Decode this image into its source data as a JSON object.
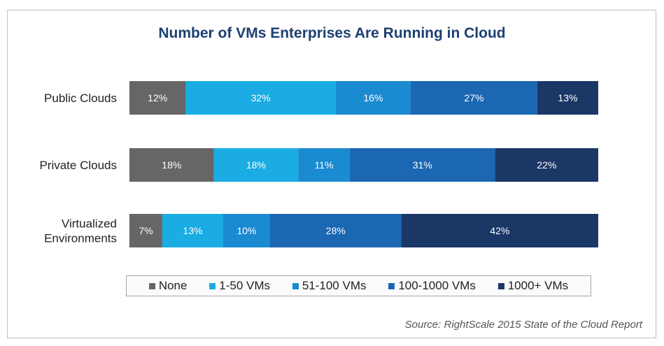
{
  "chart_data": {
    "type": "bar",
    "orientation": "horizontal-stacked-100",
    "title": "Number of VMs Enterprises Are Running in Cloud",
    "source": "Source: RightScale 2015 State of the Cloud Report",
    "categories": [
      [
        "Public Clouds"
      ],
      [
        "Private Clouds"
      ],
      [
        "Virtualized",
        "Environments"
      ]
    ],
    "series": [
      {
        "name": "None",
        "color": "#666666",
        "values": [
          12,
          18,
          7
        ]
      },
      {
        "name": "1-50 VMs",
        "color": "#1aace3",
        "values": [
          32,
          18,
          13
        ]
      },
      {
        "name": "51-100 VMs",
        "color": "#1b8bd1",
        "values": [
          16,
          11,
          10
        ]
      },
      {
        "name": "100-1000 VMs",
        "color": "#1b67b2",
        "values": [
          27,
          31,
          28
        ]
      },
      {
        "name": "1000+ VMs",
        "color": "#1a3766",
        "values": [
          13,
          22,
          42
        ]
      }
    ],
    "value_suffix": "%",
    "legend_position": "bottom",
    "xlim": [
      0,
      100
    ]
  }
}
